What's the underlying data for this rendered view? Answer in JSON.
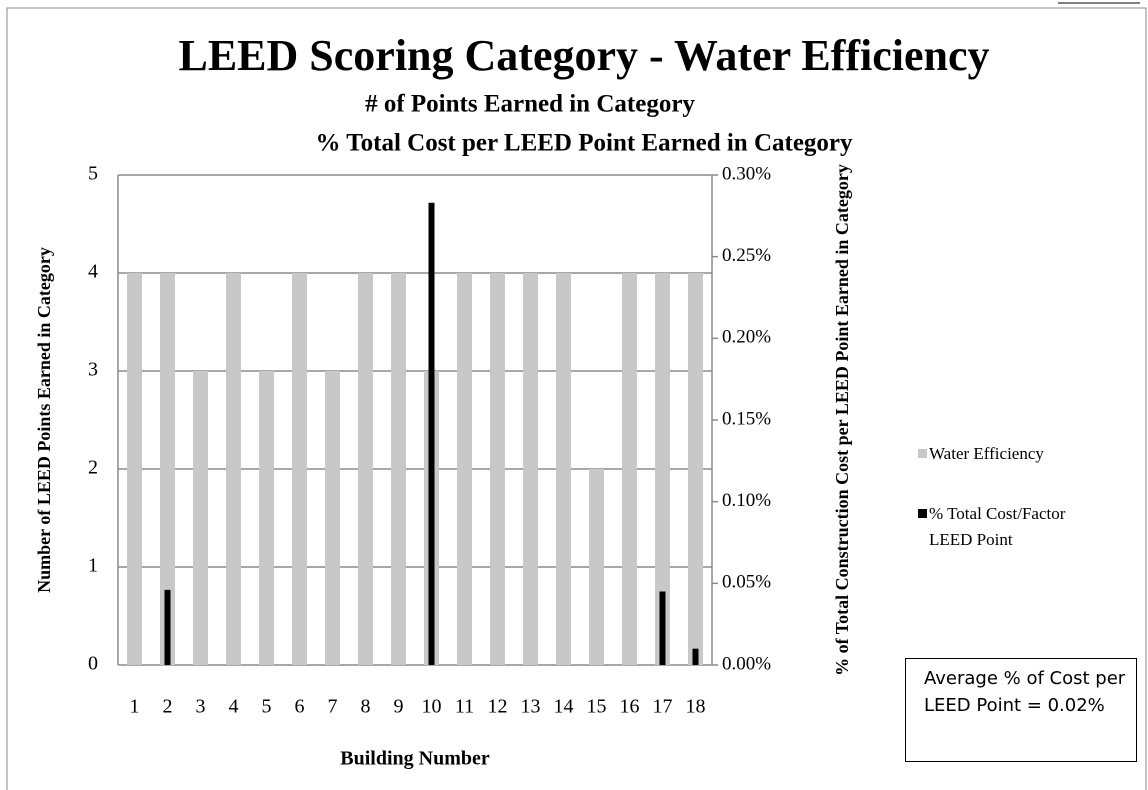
{
  "chart_data": {
    "type": "bar",
    "title": "LEED Scoring Category - Water Efficiency",
    "subtitle": [
      "# of Points Earned in Category",
      "% Total Cost per LEED Point Earned in Category"
    ],
    "x_label": "Building Number",
    "y_label": "Number of LEED Points Earned in Category",
    "y2_label": "% of Total Construction Cost per LEED Point Earned in Category",
    "categories": [
      "1",
      "2",
      "3",
      "4",
      "5",
      "6",
      "7",
      "8",
      "9",
      "10",
      "11",
      "12",
      "13",
      "14",
      "15",
      "16",
      "17",
      "18"
    ],
    "series": [
      {
        "name": "Water Efficiency",
        "color": "#c8c8c8",
        "values": [
          4,
          4,
          3,
          4,
          3,
          4,
          3,
          4,
          4,
          3,
          4,
          4,
          4,
          4,
          2,
          4,
          4,
          4
        ]
      },
      {
        "name": "% Total Cost/Factor LEED Point",
        "color": "#000000",
        "axis": "y2",
        "values": [
          0,
          0.046,
          0,
          0,
          0,
          0,
          0,
          0,
          0,
          0.283,
          0,
          0,
          0,
          0,
          0,
          0,
          0.045,
          0.01
        ]
      }
    ],
    "ylim": [
      0,
      5
    ],
    "yticks": [
      0,
      1,
      2,
      3,
      4,
      5
    ],
    "y2lim": [
      0,
      0.3
    ],
    "y2ticks": [
      {
        "value": 0,
        "label": "0.00%"
      },
      {
        "value": 0.05,
        "label": "0.05%"
      },
      {
        "value": 0.1,
        "label": "0.10%"
      },
      {
        "value": 0.15,
        "label": "0.15%"
      },
      {
        "value": 0.2,
        "label": "0.20%"
      },
      {
        "value": 0.25,
        "label": "0.25%"
      },
      {
        "value": 0.3,
        "label": "0.30%"
      }
    ],
    "grid": true,
    "annotation": "Average % of Cost per LEED Point = 0.02%"
  }
}
